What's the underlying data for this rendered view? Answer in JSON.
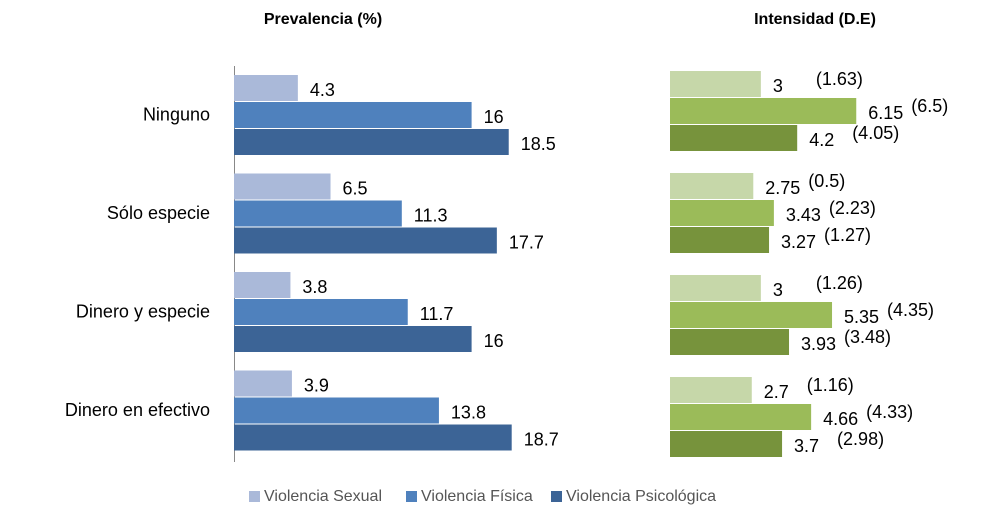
{
  "chart_data": [
    {
      "type": "bar",
      "orientation": "horizontal",
      "title": "Prevalencia (%)",
      "categories": [
        "Ninguno",
        "Sólo especie",
        "Dinero y especie",
        "Dinero en efectivo"
      ],
      "xlim": [
        0,
        20
      ],
      "series": [
        {
          "name": "Violencia Sexual",
          "color": "#aab9d9",
          "values": [
            4.3,
            6.5,
            3.8,
            3.9
          ]
        },
        {
          "name": "Violencia Física",
          "color": "#4f81bd",
          "values": [
            16,
            11.3,
            11.7,
            13.8
          ]
        },
        {
          "name": "Violencia Psicológica",
          "color": "#3c6496",
          "values": [
            18.5,
            17.7,
            16,
            18.7
          ]
        }
      ]
    },
    {
      "type": "bar",
      "orientation": "horizontal",
      "title": "Intensidad (D.E)",
      "xlim": [
        0,
        7
      ],
      "series": [
        {
          "color": "#c6d7a9",
          "values": [
            3,
            2.75,
            3,
            2.7
          ],
          "sd": [
            1.63,
            0.5,
            1.26,
            1.16
          ],
          "sd_labels": [
            "(1.63)",
            "(0.5)",
            "(1.26)",
            "(1.16)"
          ]
        },
        {
          "color": "#9bbb59",
          "values": [
            6.15,
            3.43,
            5.35,
            4.66
          ],
          "sd": [
            6.5,
            2.23,
            4.35,
            4.33
          ],
          "sd_labels": [
            "(6.5)",
            "(2.23)",
            "(4.35)",
            "(4.33)"
          ]
        },
        {
          "color": "#77933c",
          "values": [
            4.2,
            3.27,
            3.93,
            3.7
          ],
          "sd": [
            4.05,
            1.27,
            3.48,
            2.98
          ],
          "sd_labels": [
            "(4.05)",
            "(1.27)",
            "(3.48)",
            "(2.98)"
          ]
        }
      ]
    }
  ]
}
